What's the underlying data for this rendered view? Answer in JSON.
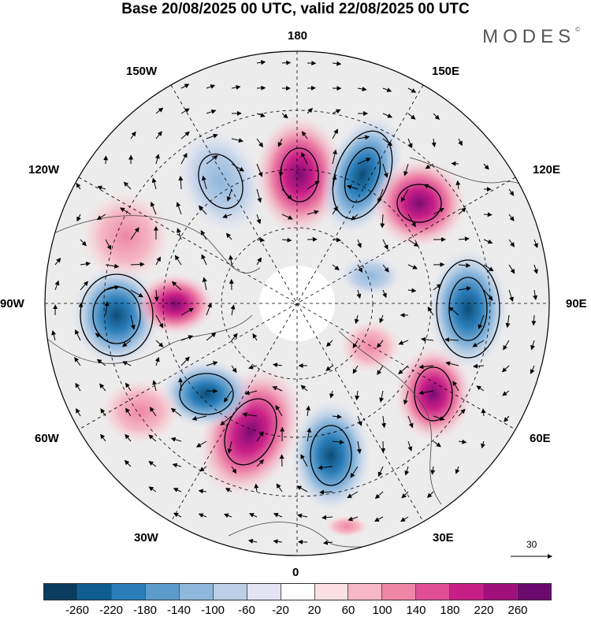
{
  "title": "Base 20/08/2025 00 UTC, valid 22/08/2025 00 UTC",
  "brand": "MODES",
  "brand_mark": "©",
  "longitude_labels": {
    "top": "180",
    "bottom": "0",
    "left": "90W",
    "right": "90E",
    "upper_left": "150W",
    "upper_right": "150E",
    "mid_left_upper": "120W",
    "mid_right_upper": "120E",
    "mid_left_lower": "60W",
    "mid_right_lower": "60E",
    "lower_left": "30W",
    "lower_right": "30E"
  },
  "reference_vector": {
    "label": "30"
  },
  "colorbar": {
    "colors": [
      "#0b3c5d",
      "#0e5e91",
      "#2a7db8",
      "#5b9ccc",
      "#8fb8dc",
      "#bccfe8",
      "#e3e3f2",
      "#ffffff",
      "#fbe0e3",
      "#f5b8c4",
      "#ee86a8",
      "#e04f96",
      "#c81f86",
      "#a0107a",
      "#6b0a6e"
    ],
    "ticks": [
      "-260",
      "-220",
      "-180",
      "-140",
      "-100",
      "-60",
      "-20",
      "20",
      "60",
      "100",
      "140",
      "180",
      "220",
      "260"
    ]
  },
  "anomaly_centers": [
    {
      "name": "center-pos-180",
      "sign": "positive",
      "value": 240
    },
    {
      "name": "center-neg-150e",
      "sign": "negative",
      "value": -230
    },
    {
      "name": "center-pos-120e",
      "sign": "positive",
      "value": 180
    },
    {
      "name": "center-neg-90e",
      "sign": "negative",
      "value": -150
    },
    {
      "name": "center-pos-60e",
      "sign": "positive",
      "value": 150
    },
    {
      "name": "center-neg-30e",
      "sign": "negative",
      "value": -170
    },
    {
      "name": "center-pos-20w",
      "sign": "positive",
      "value": 200
    },
    {
      "name": "center-neg-50w",
      "sign": "negative",
      "value": -130
    },
    {
      "name": "center-neg-90w",
      "sign": "negative",
      "value": -200
    },
    {
      "name": "center-pos-75w",
      "sign": "positive",
      "value": 170
    },
    {
      "name": "center-pos-120w",
      "sign": "positive",
      "value": 110
    },
    {
      "name": "center-neg-150w",
      "sign": "negative",
      "value": -140
    }
  ]
}
